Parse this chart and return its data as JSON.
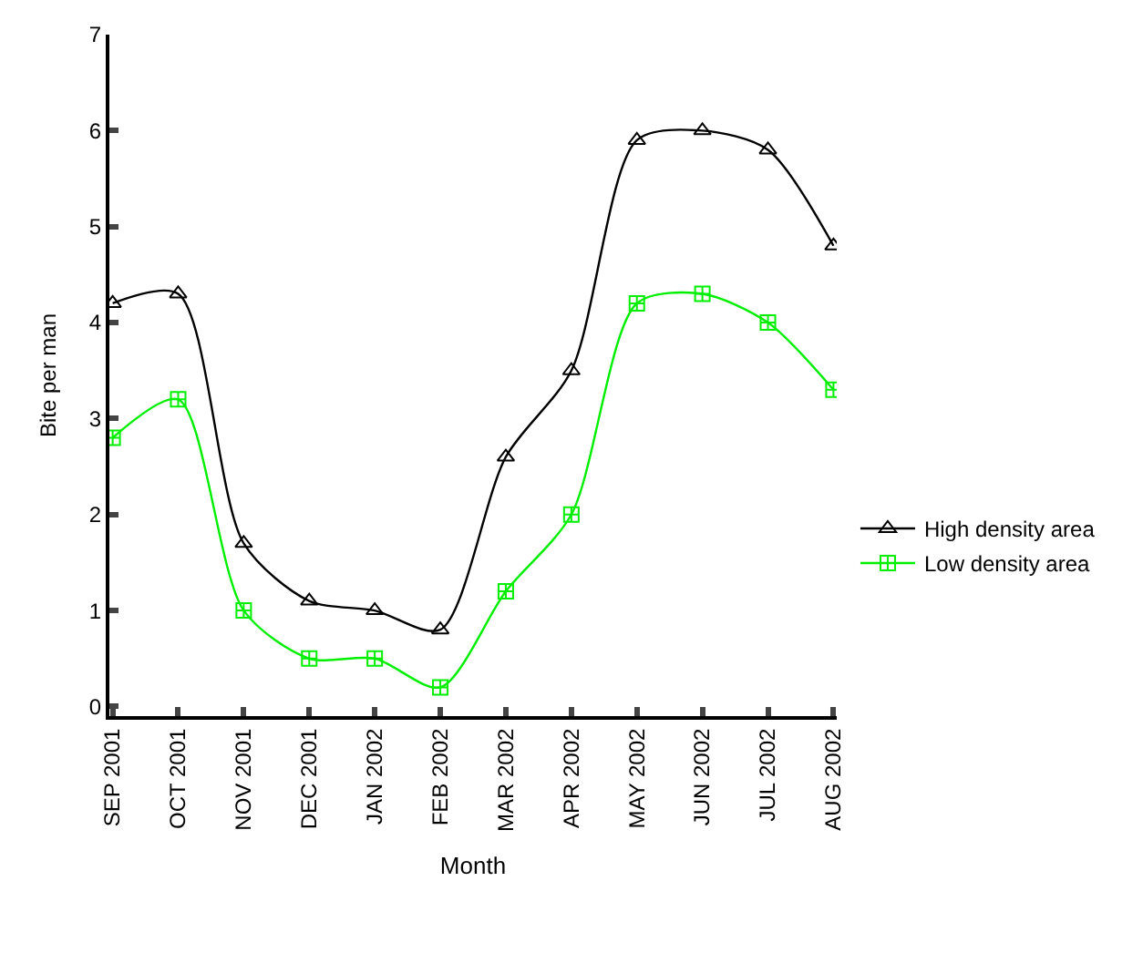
{
  "chart_data": {
    "type": "line",
    "xlabel": "Month",
    "ylabel": "Bite per man",
    "categories": [
      "SEP 2001",
      "OCT 2001",
      "NOV 2001",
      "DEC 2001",
      "JAN 2002",
      "FEB 2002",
      "MAR 2002",
      "APR 2002",
      "MAY 2002",
      "JUN 2002",
      "JUL 2002",
      "AUG 2002"
    ],
    "series": [
      {
        "name": "High density area",
        "color": "#000000",
        "marker": "triangle",
        "values": [
          4.2,
          4.3,
          1.7,
          1.1,
          1.0,
          0.8,
          2.6,
          3.5,
          5.9,
          6.0,
          5.8,
          4.8
        ]
      },
      {
        "name": "Low density area",
        "color": "#00ee00",
        "marker": "cross",
        "values": [
          2.8,
          3.2,
          1.0,
          0.5,
          0.5,
          0.2,
          1.2,
          2.0,
          4.2,
          4.3,
          4.0,
          3.3
        ]
      }
    ],
    "ylim": [
      -0.1,
      7
    ],
    "yticks": [
      0,
      1,
      2,
      3,
      4,
      5,
      6,
      7
    ],
    "legend": "right",
    "line_style": "solid"
  }
}
